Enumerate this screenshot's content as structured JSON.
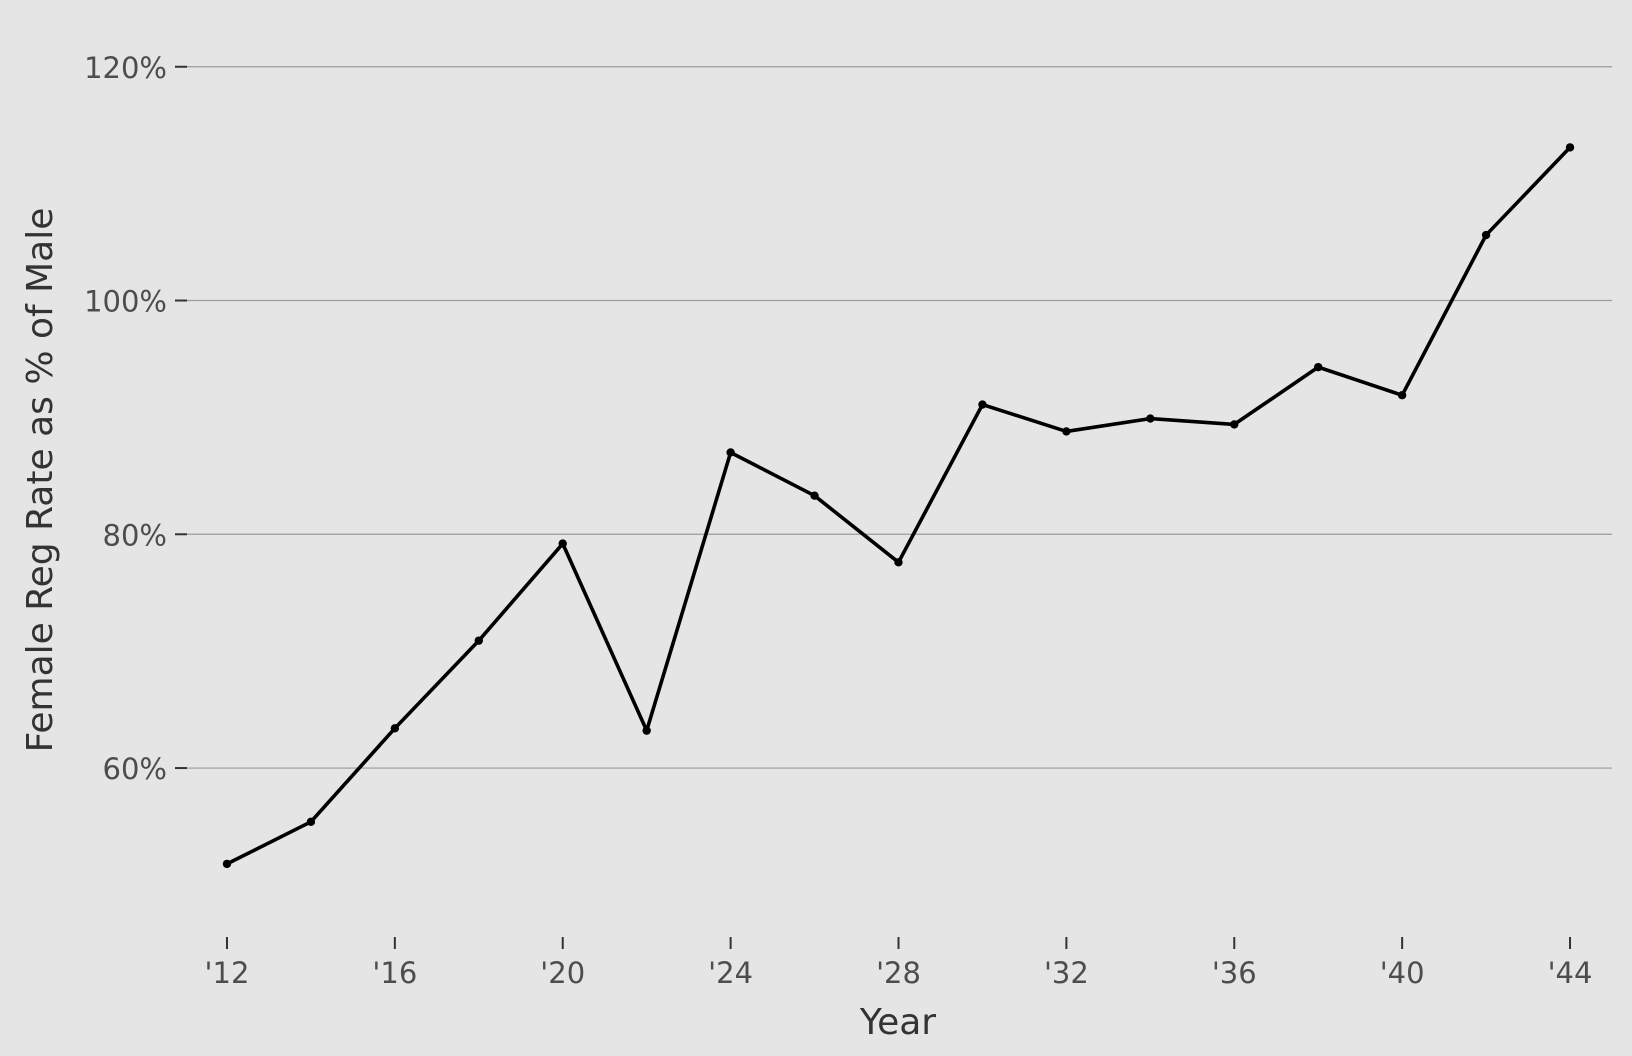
{
  "chart_data": {
    "type": "line",
    "title": "",
    "xlabel": "Year",
    "ylabel": "Female Reg Rate as % of Male",
    "x": [
      2012,
      2014,
      2016,
      2018,
      2020,
      2022,
      2024,
      2026,
      2028,
      2030,
      2032,
      2034,
      2036,
      2038,
      2040,
      2042,
      2044
    ],
    "y": [
      51.8,
      55.4,
      63.4,
      70.9,
      79.2,
      63.2,
      87.0,
      83.3,
      77.6,
      91.1,
      88.8,
      89.9,
      89.4,
      94.3,
      91.9,
      105.6,
      113.1
    ],
    "xlim": [
      2011,
      2045
    ],
    "ylim": [
      47,
      124
    ],
    "x_ticks": [
      2012,
      2016,
      2020,
      2024,
      2028,
      2032,
      2036,
      2040,
      2044
    ],
    "x_tick_labels": [
      "'12",
      "'16",
      "'20",
      "'24",
      "'28",
      "'32",
      "'36",
      "'40",
      "'44"
    ],
    "y_ticks": [
      60,
      80,
      100,
      120
    ],
    "y_tick_labels": [
      "60%",
      "80%",
      "100%",
      "120%"
    ],
    "grid": "horizontal major",
    "legend": "none",
    "colors": {
      "background": "#e5e5e5",
      "gridline": "#9b9b9b",
      "line": "#000000",
      "tick_text": "#4d4d4d",
      "axis_title": "#333333"
    }
  }
}
